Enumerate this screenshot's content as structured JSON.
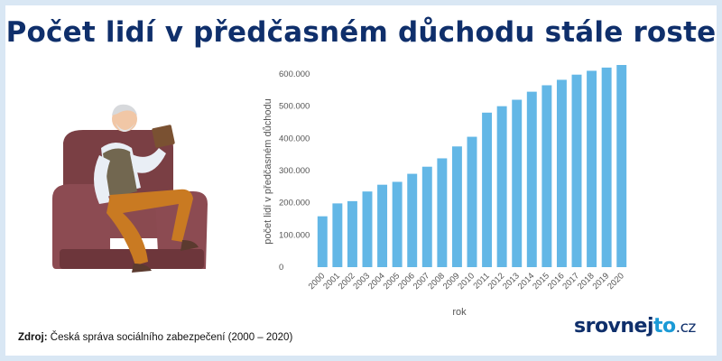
{
  "header": {
    "title": "Počet lidí v předčasném důchodu stále roste"
  },
  "chart_data": {
    "type": "bar",
    "title": "",
    "xlabel": "rok",
    "ylabel": "počet lidí v předčasném důchodu",
    "ylim": [
      0,
      600000
    ],
    "yticks": [
      0,
      100000,
      200000,
      300000,
      400000,
      500000,
      600000
    ],
    "ytick_labels": [
      "0",
      "100.000",
      "200.000",
      "300.000",
      "400.000",
      "500.000",
      "600.000"
    ],
    "categories": [
      "2000",
      "2001",
      "2002",
      "2003",
      "2004",
      "2005",
      "2006",
      "2007",
      "2008",
      "2009",
      "2010",
      "2011",
      "2012",
      "2013",
      "2014",
      "2015",
      "2016",
      "2017",
      "2018",
      "2019",
      "2020"
    ],
    "values": [
      158000,
      198000,
      205000,
      235000,
      256000,
      265000,
      290000,
      312000,
      338000,
      375000,
      405000,
      480000,
      500000,
      520000,
      545000,
      565000,
      582000,
      598000,
      610000,
      620000,
      628000
    ],
    "bar_color": "#63b7e6",
    "grid": false,
    "legend": "none"
  },
  "footer": {
    "source_label": "Zdroj:",
    "source_text": "Česká správa sociálního zabezpečení (2000 – 2020)",
    "logo_main": "srovnej",
    "logo_accent": "to",
    "logo_tld": ".cz"
  },
  "colors": {
    "title": "#0f2f6b",
    "accent": "#1b9ad6",
    "border": "#d9e7f4"
  }
}
